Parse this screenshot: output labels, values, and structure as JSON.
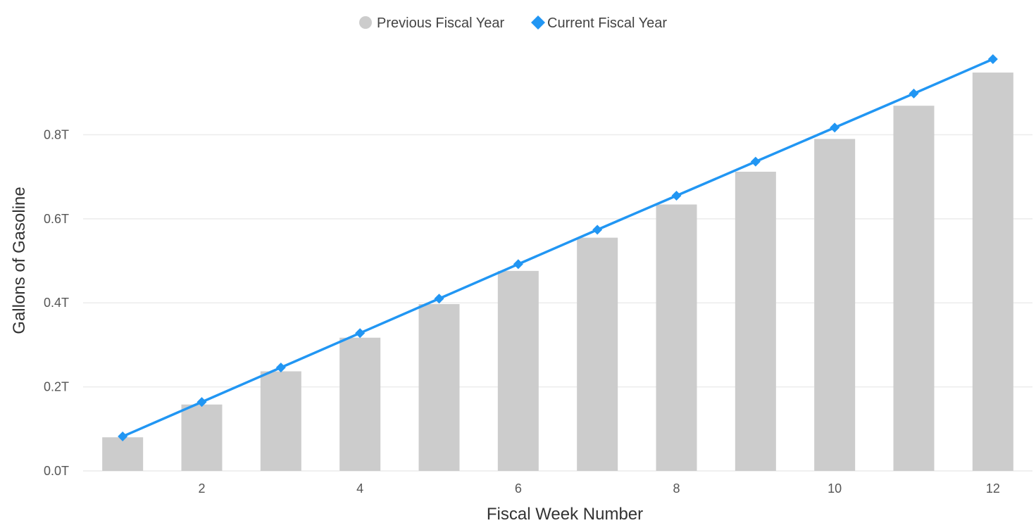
{
  "chart_data": {
    "type": "bar",
    "title": "",
    "xlabel": "Fiscal Week Number",
    "ylabel": "Gallons of Gasoline",
    "x": [
      1,
      2,
      3,
      4,
      5,
      6,
      7,
      8,
      9,
      10,
      11,
      12
    ],
    "x_tick_labels": [
      "2",
      "4",
      "6",
      "8",
      "10",
      "12"
    ],
    "x_tick_values": [
      2,
      4,
      6,
      8,
      10,
      12
    ],
    "y_tick_labels": [
      "0.0T",
      "0.2T",
      "0.4T",
      "0.6T",
      "0.8T"
    ],
    "y_tick_values": [
      0,
      0.2,
      0.4,
      0.6,
      0.8
    ],
    "ylim": [
      0,
      0.99
    ],
    "grid": true,
    "legend_position": "top-center",
    "series": [
      {
        "name": "Previous Fiscal Year",
        "type": "bar",
        "marker": "circle",
        "color": "#cccccc",
        "values": [
          0.08,
          0.158,
          0.237,
          0.317,
          0.397,
          0.476,
          0.555,
          0.634,
          0.712,
          0.79,
          0.869,
          0.948
        ]
      },
      {
        "name": "Current Fiscal Year",
        "type": "line",
        "marker": "diamond",
        "color": "#2196f3",
        "values": [
          0.082,
          0.164,
          0.246,
          0.328,
          0.41,
          0.492,
          0.574,
          0.655,
          0.736,
          0.817,
          0.898,
          0.98
        ]
      }
    ]
  }
}
